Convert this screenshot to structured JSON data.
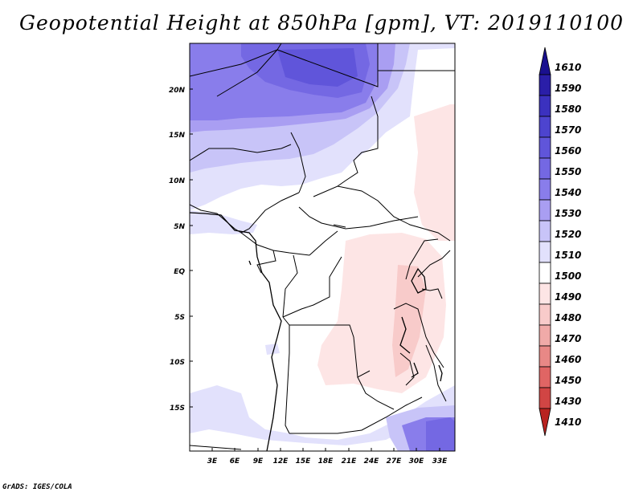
{
  "title": "Geopotential Height at 850hPa [gpm], VT: 2019110100",
  "footer": "GrADS: IGES/COLA",
  "map": {
    "lat_labels": [
      "20N",
      "15N",
      "10N",
      "5N",
      "EQ",
      "5S",
      "10S",
      "15S"
    ],
    "lon_labels": [
      "3E",
      "6E",
      "9E",
      "12E",
      "15E",
      "18E",
      "21E",
      "24E",
      "27E",
      "30E",
      "33E"
    ],
    "lon_range": [
      0,
      35
    ],
    "lat_range": [
      -20,
      25
    ]
  },
  "colorbar": {
    "labels": [
      "1610",
      "1590",
      "1580",
      "1570",
      "1560",
      "1550",
      "1540",
      "1530",
      "1520",
      "1510",
      "1500",
      "1490",
      "1480",
      "1470",
      "1460",
      "1450",
      "1430",
      "1410"
    ],
    "colors": [
      "#1a108f",
      "#2a1ea8",
      "#3b31bf",
      "#4d44cf",
      "#6055da",
      "#7468e3",
      "#897deb",
      "#a99ef2",
      "#c8c4f8",
      "#e2e1fc",
      "#ffffff",
      "#fde5e5",
      "#f8cbca",
      "#f0aaa8",
      "#e88886",
      "#e06564",
      "#d14544",
      "#b82320"
    ]
  }
}
